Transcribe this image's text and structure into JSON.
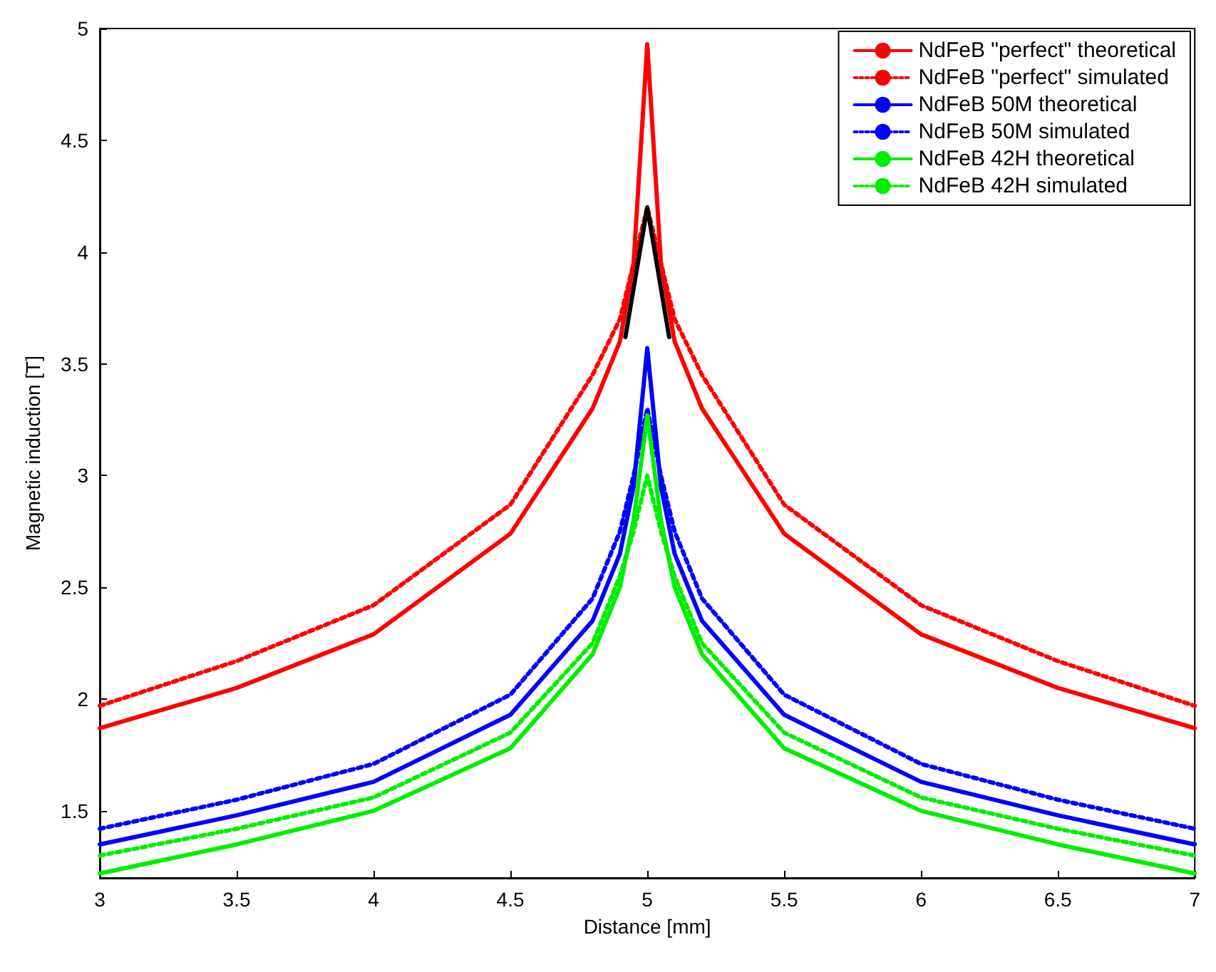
{
  "chart_data": {
    "type": "line",
    "xlabel": "Distance [mm]",
    "ylabel": "Magnetic induction [T]",
    "x": [
      3,
      3.5,
      4,
      4.5,
      4.8,
      4.9,
      4.95,
      5,
      5.05,
      5.1,
      5.2,
      5.5,
      6,
      6.5,
      7
    ],
    "xlim": [
      3,
      7
    ],
    "xticks": [
      3,
      3.5,
      4,
      4.5,
      5,
      5.5,
      6,
      6.5,
      7
    ],
    "ylim": [
      1.2,
      5
    ],
    "yticks": [
      1.5,
      2,
      2.5,
      3,
      3.5,
      4,
      4.5,
      5
    ],
    "grid": false,
    "legend": "top right",
    "marker": "none",
    "series": [
      {
        "name": "NdFeB \"perfect\" theoretical",
        "color": "#ff0000",
        "line_style": "solid",
        "values": [
          1.87,
          2.05,
          2.29,
          2.74,
          3.3,
          3.6,
          3.95,
          4.93,
          3.95,
          3.6,
          3.3,
          2.74,
          2.29,
          2.05,
          1.87
        ]
      },
      {
        "name": "NdFeB \"perfect\" simulated",
        "color": "#ff0000",
        "line_style": "dotted",
        "values": [
          1.97,
          2.17,
          2.42,
          2.87,
          3.45,
          3.7,
          3.95,
          4.2,
          3.95,
          3.7,
          3.45,
          2.87,
          2.42,
          2.17,
          1.97
        ]
      },
      {
        "name": "NdFeB 50M theoretical",
        "color": "#0000ff",
        "line_style": "solid",
        "values": [
          1.35,
          1.48,
          1.63,
          1.93,
          2.35,
          2.65,
          2.95,
          3.57,
          2.95,
          2.65,
          2.35,
          1.93,
          1.63,
          1.48,
          1.35
        ]
      },
      {
        "name": "NdFeB 50M simulated",
        "color": "#0000ff",
        "line_style": "dotted",
        "values": [
          1.42,
          1.55,
          1.71,
          2.02,
          2.45,
          2.75,
          3.0,
          3.3,
          3.0,
          2.75,
          2.45,
          2.02,
          1.71,
          1.55,
          1.42
        ]
      },
      {
        "name": "NdFeB 42H theoretical",
        "color": "#00ee00",
        "line_style": "solid",
        "values": [
          1.22,
          1.35,
          1.5,
          1.78,
          2.2,
          2.5,
          2.8,
          3.27,
          2.8,
          2.5,
          2.2,
          1.78,
          1.5,
          1.35,
          1.22
        ]
      },
      {
        "name": "NdFeB 42H simulated",
        "color": "#00ee00",
        "line_style": "dotted",
        "values": [
          1.3,
          1.42,
          1.56,
          1.85,
          2.25,
          2.55,
          2.75,
          3.0,
          2.75,
          2.55,
          2.25,
          1.85,
          1.56,
          1.42,
          1.3
        ]
      },
      {
        "color": "#000000",
        "line_style": "solid",
        "x": [
          4.92,
          5,
          5.08
        ],
        "values": [
          3.62,
          4.2,
          3.62
        ]
      }
    ]
  }
}
